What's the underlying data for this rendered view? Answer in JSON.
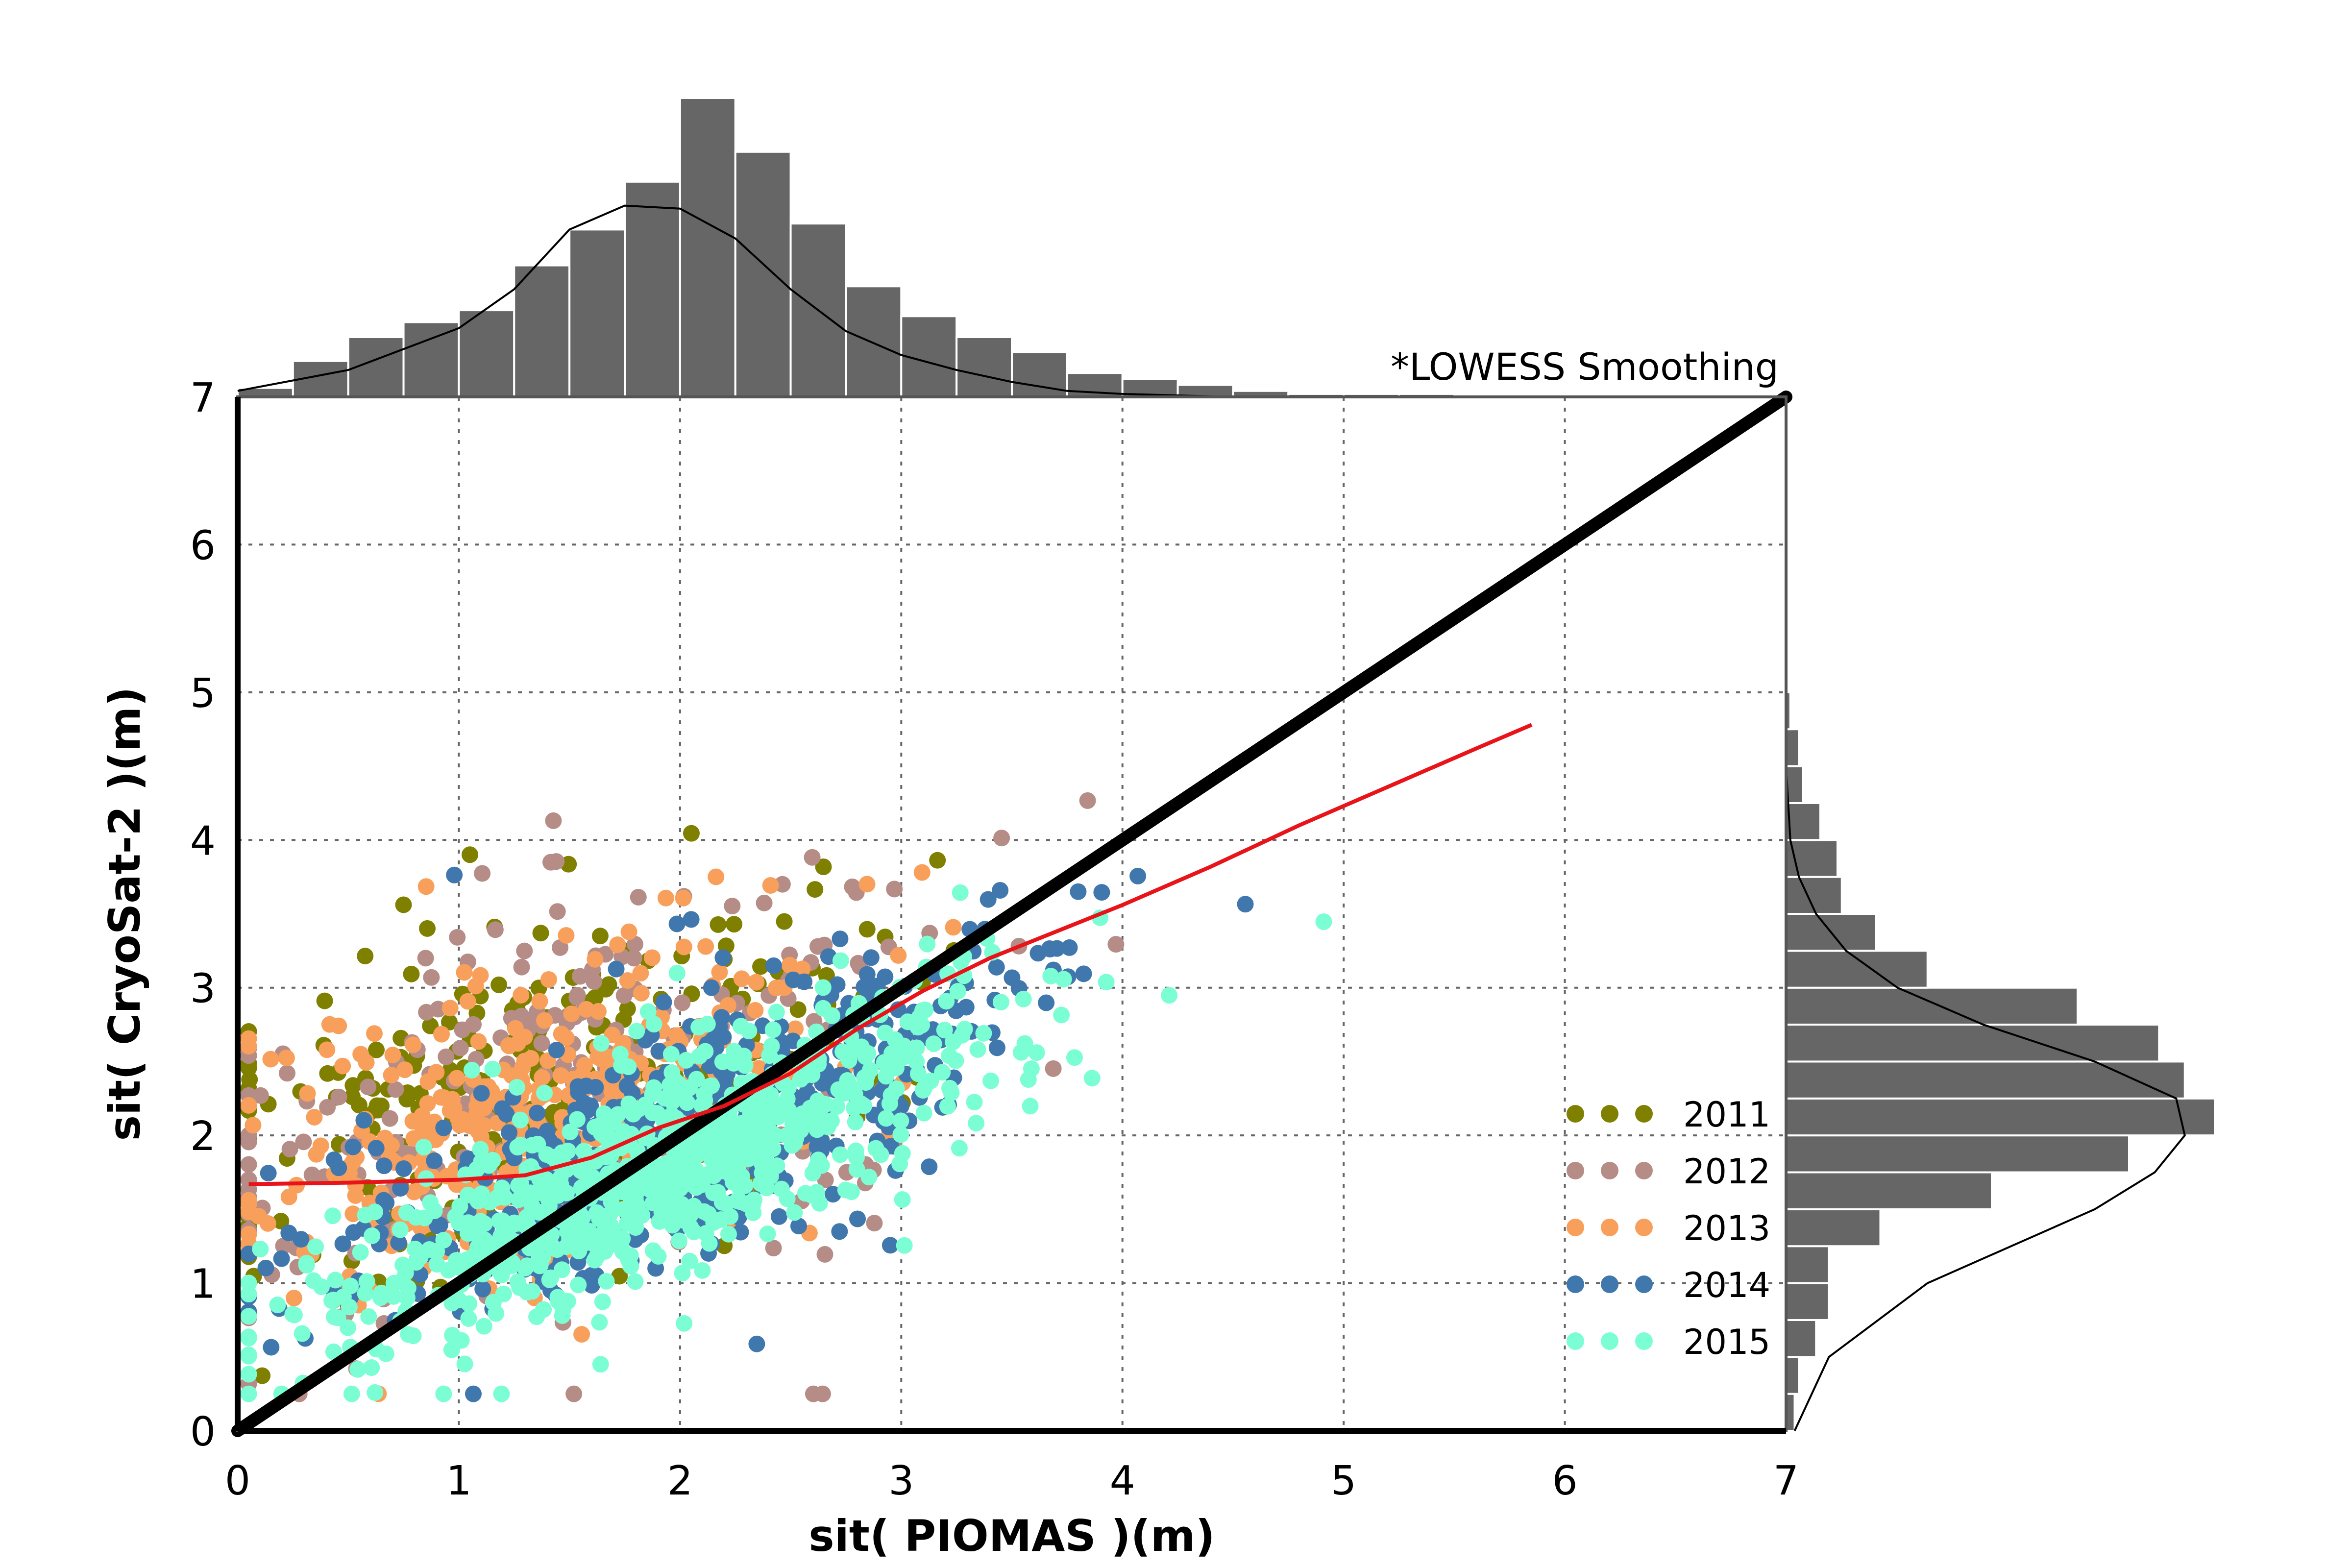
{
  "chart_data": {
    "type": "scatter",
    "title": "",
    "xlabel": "sit( PIOMAS )(m)",
    "ylabel": "sit( CryoSat-2 )(m)",
    "xlim": [
      0,
      7
    ],
    "ylim": [
      0,
      7
    ],
    "xticks": [
      0,
      1,
      2,
      3,
      4,
      5,
      6,
      7
    ],
    "yticks": [
      0,
      1,
      2,
      3,
      4,
      5,
      6,
      7
    ],
    "grid": true,
    "grid_style": "dotted",
    "annotation": "*LOWESS Smoothing",
    "legend_position": "lower-right",
    "one_to_one_line": {
      "color": "#000000",
      "points": [
        [
          0,
          0
        ],
        [
          7,
          7
        ]
      ]
    },
    "lowess": {
      "color": "#e8141a",
      "points": [
        [
          0.05,
          1.67
        ],
        [
          0.5,
          1.68
        ],
        [
          1.0,
          1.7
        ],
        [
          1.3,
          1.73
        ],
        [
          1.6,
          1.85
        ],
        [
          1.9,
          2.05
        ],
        [
          2.2,
          2.2
        ],
        [
          2.5,
          2.42
        ],
        [
          2.8,
          2.72
        ],
        [
          3.1,
          2.98
        ],
        [
          3.4,
          3.2
        ],
        [
          3.7,
          3.38
        ],
        [
          4.0,
          3.56
        ],
        [
          4.4,
          3.82
        ],
        [
          4.8,
          4.1
        ],
        [
          5.2,
          4.36
        ],
        [
          5.6,
          4.62
        ],
        [
          5.85,
          4.78
        ]
      ]
    },
    "series": [
      {
        "name": "2011",
        "color": "#7f7f00"
      },
      {
        "name": "2012",
        "color": "#b68c86"
      },
      {
        "name": "2013",
        "color": "#f8a05b"
      },
      {
        "name": "2014",
        "color": "#4077ad"
      },
      {
        "name": "2015",
        "color": "#7cfed4"
      }
    ],
    "marginal_x_histogram": {
      "bin_width": 0.25,
      "bin_start": 0,
      "counts": [
        3,
        12,
        20,
        25,
        29,
        44,
        56,
        72,
        100,
        82,
        58,
        37,
        27,
        20,
        15,
        8,
        6,
        4,
        2,
        1,
        1,
        1,
        0,
        0,
        0,
        0,
        0,
        0
      ],
      "density_curve": [
        [
          0,
          2
        ],
        [
          0.5,
          9
        ],
        [
          1.0,
          23
        ],
        [
          1.25,
          36
        ],
        [
          1.5,
          56
        ],
        [
          1.75,
          64
        ],
        [
          2.0,
          63
        ],
        [
          2.25,
          53
        ],
        [
          2.5,
          36
        ],
        [
          2.75,
          22
        ],
        [
          3.0,
          14
        ],
        [
          3.25,
          9
        ],
        [
          3.5,
          5
        ],
        [
          3.75,
          2
        ],
        [
          4.0,
          1
        ],
        [
          4.5,
          0
        ],
        [
          5.0,
          0
        ]
      ]
    },
    "marginal_y_histogram": {
      "bin_width": 0.25,
      "bin_start": 0,
      "counts": [
        2,
        3,
        7,
        10,
        10,
        22,
        48,
        80,
        100,
        93,
        87,
        68,
        33,
        21,
        13,
        12,
        8,
        4,
        3,
        1,
        0,
        0,
        0,
        0,
        0,
        0,
        0,
        0
      ],
      "density_curve": [
        [
          0,
          2
        ],
        [
          0.5,
          10
        ],
        [
          1.0,
          33
        ],
        [
          1.5,
          72
        ],
        [
          1.75,
          86
        ],
        [
          2.0,
          93
        ],
        [
          2.25,
          91
        ],
        [
          2.5,
          72
        ],
        [
          2.75,
          46
        ],
        [
          3.0,
          26
        ],
        [
          3.25,
          14
        ],
        [
          3.5,
          7
        ],
        [
          3.75,
          3
        ],
        [
          4.0,
          1
        ],
        [
          4.5,
          0
        ],
        [
          5.0,
          0
        ]
      ]
    },
    "color_axis": "#555555",
    "color_histogram": "#666666"
  }
}
